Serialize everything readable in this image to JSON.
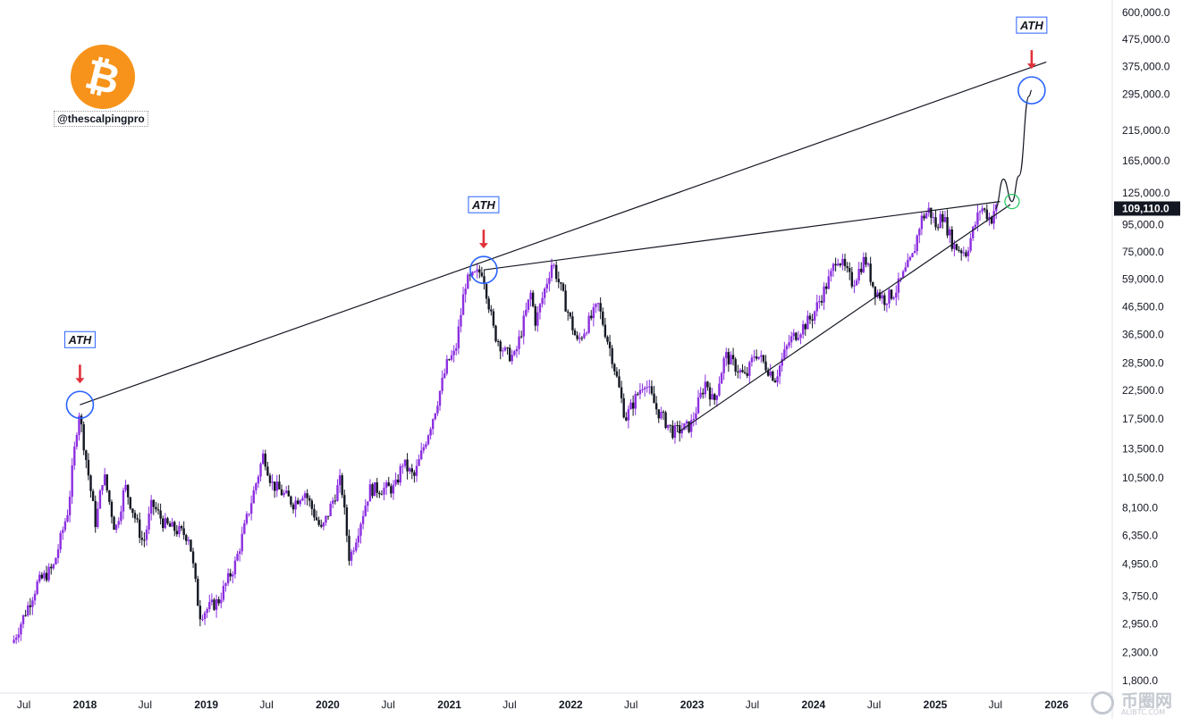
{
  "logo": {
    "glyph": "₿",
    "color": "#f7931a"
  },
  "handle": "@thescalpingpro",
  "chart_data": {
    "type": "candlestick",
    "y_scale": "log",
    "ylim": [
      1650,
      700000
    ],
    "y_ticks": [
      "600,000.0",
      "475,000.0",
      "375,000.0",
      "295,000.0",
      "215,000.0",
      "165,000.0",
      "125,000.0",
      "95,000.0",
      "75,000.0",
      "59,000.0",
      "46,500.0",
      "36,500.0",
      "28,500.0",
      "22,500.0",
      "17,500.0",
      "13,500.0",
      "10,500.0",
      "8,100.0",
      "6,350.0",
      "4,950.0",
      "3,750.0",
      "2,950.0",
      "2,300.0",
      "1,800.0"
    ],
    "x_ticks": [
      "Jul",
      "2018",
      "Jul",
      "2019",
      "Jul",
      "2020",
      "Jul",
      "2021",
      "Jul",
      "2022",
      "Jul",
      "2023",
      "Jul",
      "2024",
      "Jul",
      "2025",
      "Jul",
      "2026"
    ],
    "last_price": "109,110.0",
    "series_points": [
      [
        "2017-06-01",
        2500
      ],
      [
        "2017-08-15",
        4200
      ],
      [
        "2017-10-01",
        4800
      ],
      [
        "2017-11-15",
        8000
      ],
      [
        "2017-12-17",
        19000
      ],
      [
        "2018-02-06",
        7000
      ],
      [
        "2018-03-01",
        11000
      ],
      [
        "2018-04-06",
        6600
      ],
      [
        "2018-05-05",
        9800
      ],
      [
        "2018-06-29",
        5900
      ],
      [
        "2018-07-25",
        8400
      ],
      [
        "2018-09-01",
        7000
      ],
      [
        "2018-11-14",
        6300
      ],
      [
        "2018-12-15",
        3200
      ],
      [
        "2019-02-10",
        3600
      ],
      [
        "2019-04-02",
        5000
      ],
      [
        "2019-06-26",
        13000
      ],
      [
        "2019-07-20",
        10000
      ],
      [
        "2019-09-24",
        8400
      ],
      [
        "2019-10-26",
        9400
      ],
      [
        "2019-12-17",
        6600
      ],
      [
        "2020-02-13",
        10400
      ],
      [
        "2020-03-12",
        4900
      ],
      [
        "2020-03-13",
        5300
      ],
      [
        "2020-05-10",
        9500
      ],
      [
        "2020-07-25",
        9600
      ],
      [
        "2020-08-17",
        12000
      ],
      [
        "2020-09-20",
        10500
      ],
      [
        "2020-11-20",
        18500
      ],
      [
        "2020-12-31",
        29000
      ],
      [
        "2021-01-22",
        31000
      ],
      [
        "2021-02-21",
        57000
      ],
      [
        "2021-04-14",
        64000
      ],
      [
        "2021-05-19",
        37000
      ],
      [
        "2021-06-22",
        31000
      ],
      [
        "2021-07-20",
        30000
      ],
      [
        "2021-09-06",
        52000
      ],
      [
        "2021-09-21",
        40500
      ],
      [
        "2021-11-10",
        69000
      ],
      [
        "2022-01-24",
        34000
      ],
      [
        "2022-03-28",
        47000
      ],
      [
        "2022-05-09",
        30000
      ],
      [
        "2022-06-18",
        17600
      ],
      [
        "2022-08-14",
        24500
      ],
      [
        "2022-09-20",
        19000
      ],
      [
        "2022-11-09",
        15600
      ],
      [
        "2022-12-31",
        16500
      ],
      [
        "2023-02-15",
        24500
      ],
      [
        "2023-03-10",
        20000
      ],
      [
        "2023-04-14",
        30500
      ],
      [
        "2023-06-15",
        25000
      ],
      [
        "2023-07-13",
        31400
      ],
      [
        "2023-09-11",
        25000
      ],
      [
        "2023-10-24",
        34500
      ],
      [
        "2023-12-31",
        42500
      ],
      [
        "2024-02-28",
        62000
      ],
      [
        "2024-03-14",
        73000
      ],
      [
        "2024-05-01",
        57000
      ],
      [
        "2024-06-07",
        71000
      ],
      [
        "2024-07-05",
        54000
      ],
      [
        "2024-08-05",
        49500
      ],
      [
        "2024-09-06",
        53000
      ],
      [
        "2024-10-29",
        72000
      ],
      [
        "2024-11-22",
        99000
      ],
      [
        "2024-12-17",
        108000
      ],
      [
        "2025-01-13",
        90000
      ],
      [
        "2025-01-20",
        109000
      ],
      [
        "2025-02-28",
        79000
      ],
      [
        "2025-04-07",
        74500
      ],
      [
        "2025-05-22",
        111000
      ],
      [
        "2025-06-22",
        99000
      ],
      [
        "2025-07-01",
        109110
      ]
    ],
    "trendlines": {
      "upper_resistance": [
        [
          "2017-12-17",
          19800
        ],
        [
          "2025-12-01",
          390000
        ]
      ],
      "ath_resistance": [
        [
          "2021-04-14",
          64000
        ],
        [
          "2025-07-15",
          116000
        ]
      ],
      "rising_support": [
        [
          "2022-11-20",
          15600
        ],
        [
          "2025-08-15",
          113000
        ]
      ]
    },
    "projection": [
      [
        "2025-07-01",
        109110
      ],
      [
        "2025-07-25",
        141000
      ],
      [
        "2025-08-20",
        116000
      ],
      [
        "2025-09-10",
        145000
      ],
      [
        "2025-10-10",
        290000
      ],
      [
        "2025-10-18",
        305000
      ]
    ],
    "annotations": [
      {
        "label": "ATH",
        "date": "2017-12-17",
        "price": 19800
      },
      {
        "label": "ATH",
        "date": "2021-04-14",
        "price": 64000
      },
      {
        "label": "ATH",
        "date": "2025-10-18",
        "price": 305000
      }
    ],
    "breakout_marker": {
      "date": "2025-08-20",
      "price": 116000
    },
    "colors": {
      "up": "#8c2fe0",
      "down": "#131722",
      "ath_circle": "#2962ff",
      "arrow": "#e0313b",
      "breakout": "#22c55e",
      "line": "#131722"
    }
  },
  "watermark": {
    "text": "币圈网",
    "sub": "ALIBTC.COM"
  }
}
